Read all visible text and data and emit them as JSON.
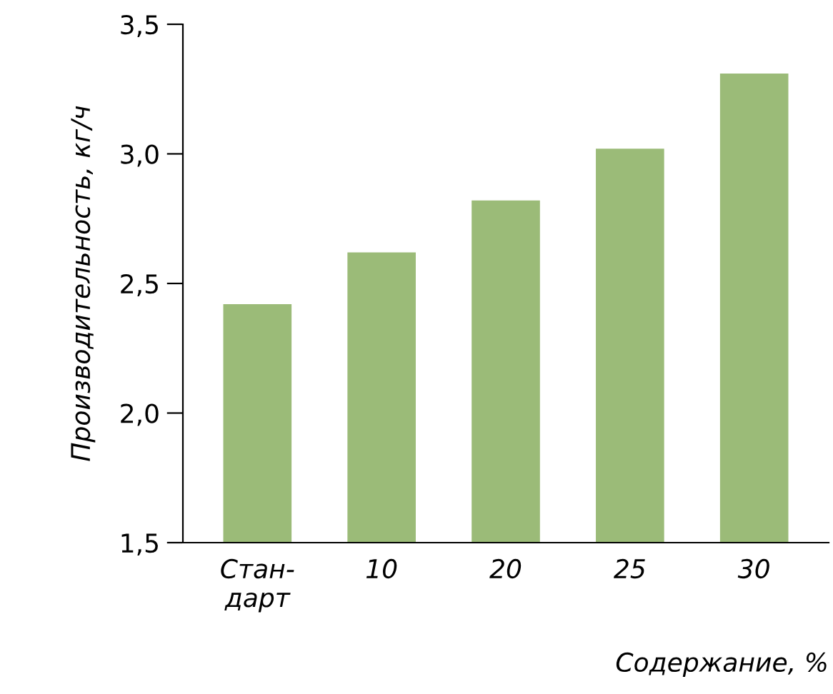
{
  "chart_data": {
    "type": "bar",
    "xlabel": "Содержание, %",
    "ylabel": "Производительность, кг/ч",
    "categories": [
      "Стан-\nдарт",
      "10",
      "20",
      "25",
      "30"
    ],
    "values": [
      2.42,
      2.62,
      2.82,
      3.02,
      3.31
    ],
    "color": "#9bbb78",
    "ylim": [
      1.5,
      3.5
    ],
    "yticks": [
      {
        "value": 1.5,
        "label": "1,5"
      },
      {
        "value": 2.0,
        "label": "2,0"
      },
      {
        "value": 2.5,
        "label": "2,5"
      },
      {
        "value": 3.0,
        "label": "3,0"
      },
      {
        "value": 3.5,
        "label": "3,5"
      }
    ],
    "grid": false
  }
}
